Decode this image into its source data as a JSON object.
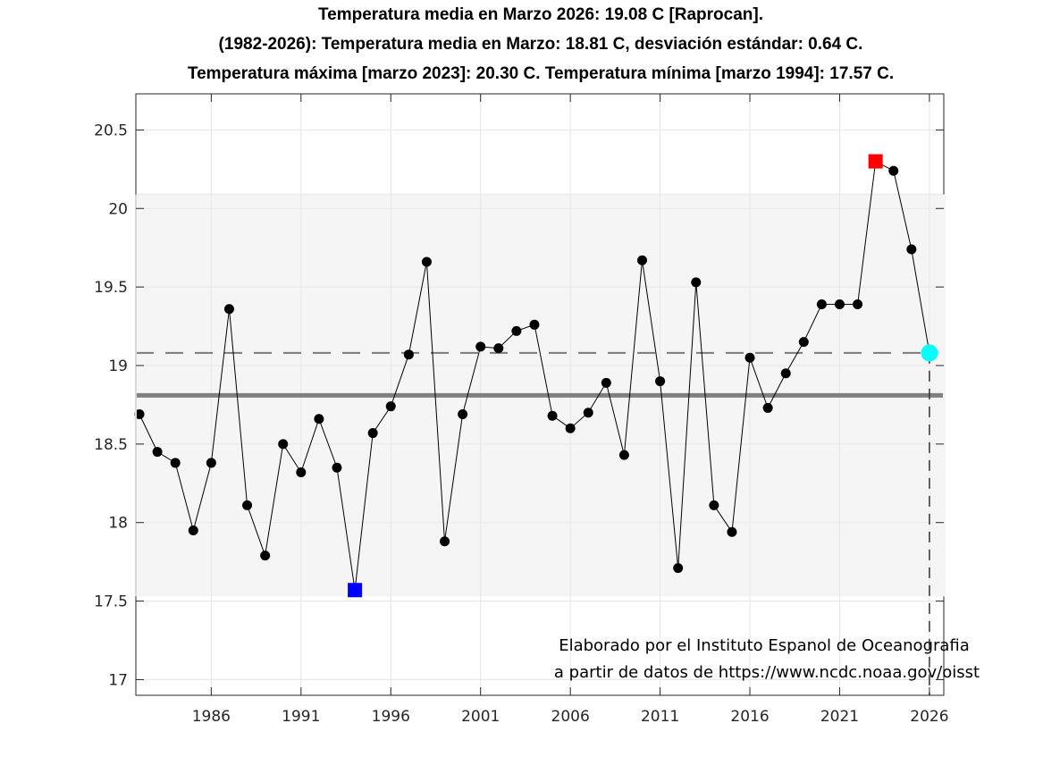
{
  "titles": [
    "Temperatura media en Marzo 2026: 19.08 C [Raprocan].",
    "(1982-2026): Temperatura media en Marzo: 18.81 C, desviación estándar: 0.64 C.",
    "Temperatura máxima [marzo 2023]: 20.30 C. Temperatura mínima [marzo 1994]: 17.57 C."
  ],
  "annotation": [
    "Elaborado por el Instituto Espanol de Oceanografia",
    "a partir de datos de https://www.ncdc.noaa.gov/oisst"
  ],
  "colors": {
    "series": "#000000",
    "max_marker": "#ff0000",
    "min_marker": "#0000ff",
    "current_marker": "#00ffff",
    "mean_line": "#808080",
    "band": "#f5f5f5",
    "grid": "#e5e5e5"
  },
  "chart_data": {
    "type": "line",
    "title": "Temperatura media en Marzo 2026: 19.08 C [Raprocan].",
    "xlabel": "",
    "ylabel": "",
    "x": [
      1982,
      1983,
      1984,
      1985,
      1986,
      1987,
      1988,
      1989,
      1990,
      1991,
      1992,
      1993,
      1994,
      1995,
      1996,
      1997,
      1998,
      1999,
      2000,
      2001,
      2002,
      2003,
      2004,
      2005,
      2006,
      2007,
      2008,
      2009,
      2010,
      2011,
      2012,
      2013,
      2014,
      2015,
      2016,
      2017,
      2018,
      2019,
      2020,
      2021,
      2022,
      2023,
      2024,
      2025,
      2026
    ],
    "series": [
      {
        "name": "Temperatura media Marzo",
        "values": [
          18.69,
          18.45,
          18.38,
          17.95,
          18.38,
          19.36,
          18.11,
          17.79,
          18.5,
          18.32,
          18.66,
          18.35,
          17.57,
          18.57,
          18.74,
          19.07,
          19.66,
          17.88,
          18.69,
          19.12,
          19.11,
          19.22,
          19.26,
          18.68,
          18.6,
          18.7,
          18.89,
          18.43,
          19.67,
          18.9,
          17.71,
          19.53,
          18.11,
          17.94,
          19.05,
          18.73,
          18.95,
          19.15,
          19.39,
          19.39,
          19.39,
          20.3,
          20.24,
          19.74,
          19.08
        ]
      }
    ],
    "mean": 18.81,
    "std": 0.64,
    "band": [
      17.53,
      20.09
    ],
    "current": {
      "year": 2026,
      "value": 19.08
    },
    "max": {
      "year": 2023,
      "value": 20.3
    },
    "min": {
      "year": 1994,
      "value": 17.57
    },
    "xlim": [
      1981.8,
      2026.8
    ],
    "ylim": [
      16.9,
      20.73
    ],
    "xticks": [
      1986,
      1991,
      1996,
      2001,
      2006,
      2011,
      2016,
      2021,
      2026
    ],
    "xtick_labels": [
      "1986",
      "1991",
      "1996",
      "2001",
      "2006",
      "2011",
      "2016",
      "2021",
      "2026"
    ],
    "yticks": [
      17,
      17.5,
      18,
      18.5,
      19,
      19.5,
      20,
      20.5
    ],
    "ytick_labels": [
      "17",
      "17.5",
      "18",
      "18.5",
      "19",
      "19.5",
      "20",
      "20.5"
    ],
    "grid": true,
    "legend": "none"
  }
}
